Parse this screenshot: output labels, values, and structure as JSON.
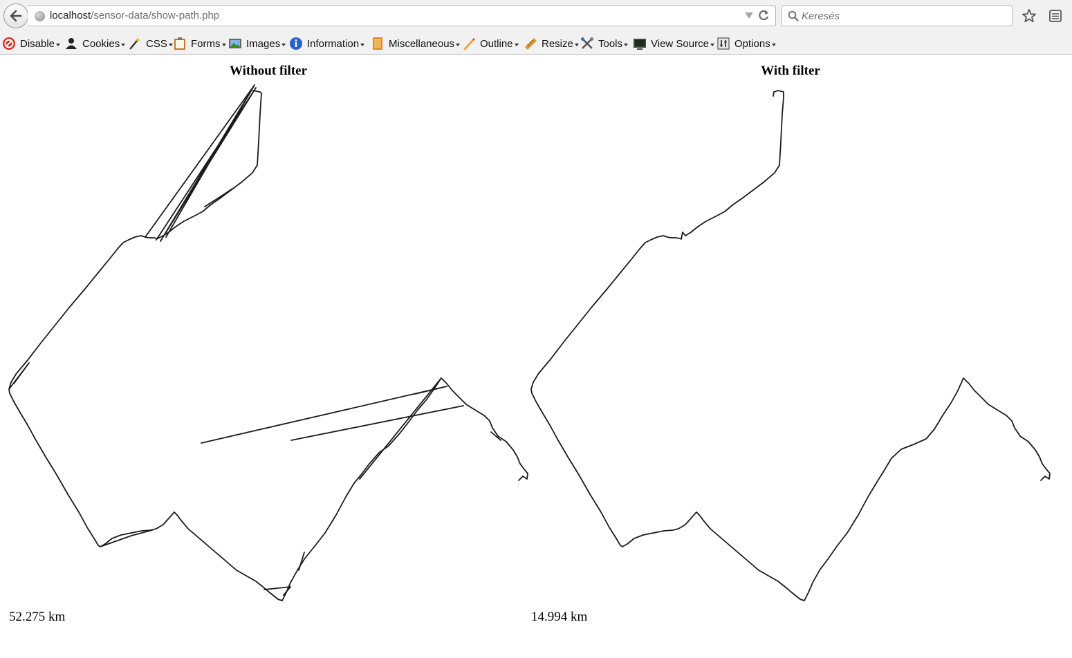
{
  "browser": {
    "url_host": "localhost",
    "url_path": "/sensor-data/show-path.php",
    "search_placeholder": "Keresés"
  },
  "toolbar": {
    "items": [
      {
        "label": "Disable",
        "icon": "disable-icon"
      },
      {
        "label": "Cookies",
        "icon": "cookies-icon"
      },
      {
        "label": "CSS",
        "icon": "css-wand-icon"
      },
      {
        "label": "Forms",
        "icon": "forms-clipboard-icon"
      },
      {
        "label": "Images",
        "icon": "images-icon"
      },
      {
        "label": "Information",
        "icon": "information-icon"
      },
      {
        "label": "Miscellaneous",
        "icon": "miscellaneous-book-icon"
      },
      {
        "label": "Outline",
        "icon": "outline-pencil-icon"
      },
      {
        "label": "Resize",
        "icon": "resize-ruler-icon"
      },
      {
        "label": "Tools",
        "icon": "tools-icon"
      },
      {
        "label": "View Source",
        "icon": "view-source-monitor-icon"
      },
      {
        "label": "Options",
        "icon": "options-icon"
      }
    ]
  },
  "panels": {
    "without": {
      "title": "Without filter",
      "distance": "52.275 km"
    },
    "with": {
      "title": "With filter",
      "distance": "14.994 km"
    }
  }
}
